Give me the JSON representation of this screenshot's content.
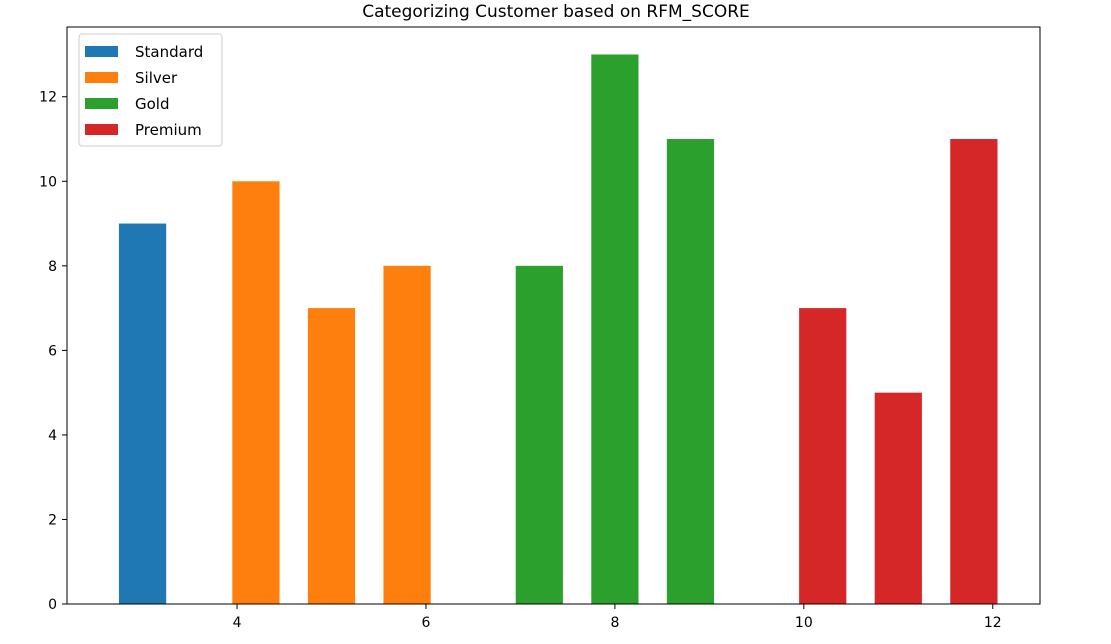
{
  "chart_data": {
    "type": "bar",
    "title": "Categorizing Customer based on RFM_SCORE",
    "xlabel": "",
    "ylabel": "",
    "xlim": [
      2.2,
      12.5
    ],
    "ylim": [
      0,
      13.65
    ],
    "x_ticks": [
      4,
      6,
      8,
      10,
      12
    ],
    "y_ticks": [
      0,
      2,
      4,
      6,
      8,
      10,
      12
    ],
    "grid": false,
    "legend_placement": "top-left",
    "series": [
      {
        "name": "Standard",
        "color": "#1f77b4",
        "x": [
          3
        ],
        "values": [
          9
        ]
      },
      {
        "name": "Silver",
        "color": "#ff7f0e",
        "x": [
          4.2,
          5,
          5.8
        ],
        "values": [
          10,
          7,
          8
        ]
      },
      {
        "name": "Gold",
        "color": "#2ca02c",
        "x": [
          7.2,
          8,
          8.8
        ],
        "values": [
          8,
          13,
          11
        ]
      },
      {
        "name": "Premium",
        "color": "#d62728",
        "x": [
          10.2,
          11,
          11.8
        ],
        "values": [
          7,
          5,
          11
        ]
      }
    ]
  }
}
